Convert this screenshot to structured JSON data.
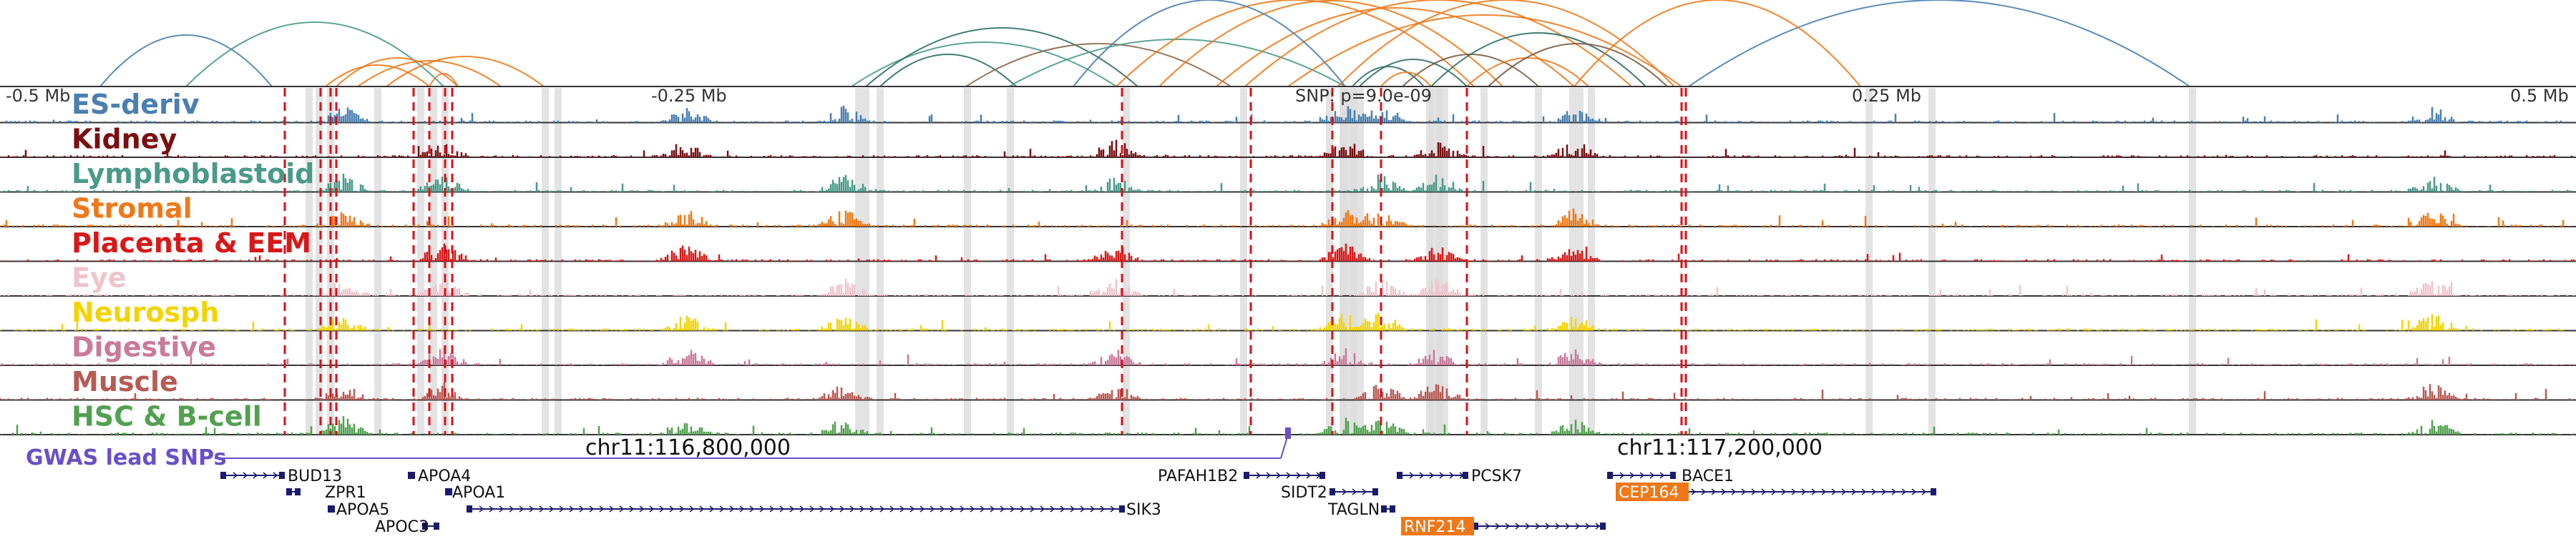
{
  "axis": {
    "ticks": [
      "-0.5 Mb",
      "-0.25 Mb",
      "0.25 Mb",
      "0.5 Mb"
    ],
    "snp_label": "SNP: p=9.0e-09"
  },
  "tracks": [
    {
      "name": "ES-deriv",
      "color": "#4a7fb0"
    },
    {
      "name": "Kidney",
      "color": "#7a0f12"
    },
    {
      "name": "Lymphoblastoid",
      "color": "#4a9a8a"
    },
    {
      "name": "Stromal",
      "color": "#f07818"
    },
    {
      "name": "Placenta & EEM",
      "color": "#d81818"
    },
    {
      "name": "Eye",
      "color": "#f0c4cc"
    },
    {
      "name": "Neurosph",
      "color": "#f2d400"
    },
    {
      "name": "Digestive",
      "color": "#c97a9a"
    },
    {
      "name": "Muscle",
      "color": "#b85a54"
    },
    {
      "name": "HSC & B-cell",
      "color": "#52a050"
    }
  ],
  "gwas": {
    "label": "GWAS lead SNPs",
    "color": "#6a4fc8"
  },
  "coordinates": {
    "left": "chr11:116,800,000",
    "right": "chr11:117,200,000"
  },
  "genes": [
    {
      "name": "BUD13",
      "highlight": false
    },
    {
      "name": "ZPR1",
      "highlight": false
    },
    {
      "name": "APOA5",
      "highlight": false
    },
    {
      "name": "APOC3",
      "highlight": false
    },
    {
      "name": "APOA4",
      "highlight": false
    },
    {
      "name": "APOA1",
      "highlight": false
    },
    {
      "name": "SIK3",
      "highlight": false
    },
    {
      "name": "PAFAH1B2",
      "highlight": false
    },
    {
      "name": "SIDT2",
      "highlight": false
    },
    {
      "name": "TAGLN",
      "highlight": false
    },
    {
      "name": "PCSK7",
      "highlight": false
    },
    {
      "name": "RNF214",
      "highlight": true
    },
    {
      "name": "BACE1",
      "highlight": false
    },
    {
      "name": "CEP164",
      "highlight": true
    }
  ],
  "colors": {
    "gene": "#1a1a6e",
    "gene_highlight": "#f07818",
    "red_dash": "#d8101a",
    "grey_band": "#dcdcdc"
  }
}
